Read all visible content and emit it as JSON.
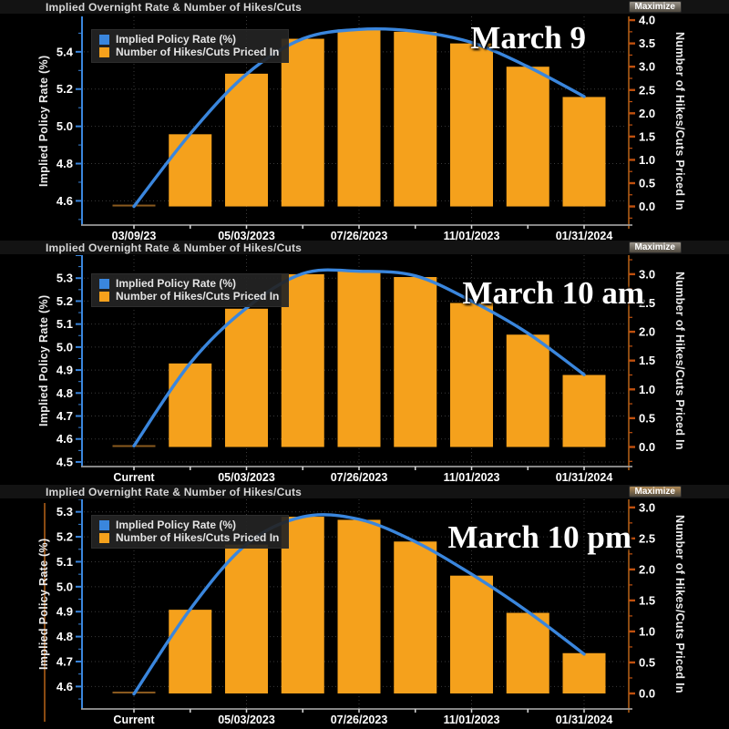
{
  "colors": {
    "background": "#000000",
    "bar": "#F5A11C",
    "bar_dim": "#8A5A1E",
    "line": "#3A86DD",
    "left_axis": "#3A86DD",
    "right_axis_spine": "#8A4A12",
    "right_axis_tick": "#C0500E",
    "grid": "#3A3A3A",
    "x_axis": "#9A9A9A",
    "tick_text": "#FFFFFF",
    "title_text": "#D6D6D6"
  },
  "chart_data": [
    {
      "type": "bar+line",
      "panel_title": "Implied Overnight Rate & Number of Hikes/Cuts",
      "maximize_label": "Maximize",
      "maximize_bg": "#9a948a",
      "annotation": "March 9",
      "legend": [
        {
          "label": "Implied Policy Rate (%)",
          "swatch": "#3A86DD"
        },
        {
          "label": "Number of Hikes/Cuts Priced In",
          "swatch": "#F5A11C"
        }
      ],
      "x_tick_labels": [
        "03/09/23",
        "05/03/2023",
        "07/26/2023",
        "11/01/2023",
        "01/31/2024"
      ],
      "left_axis": {
        "label": "Implied Policy Rate (%)",
        "ticks": [
          "5.4",
          "5.2",
          "5.0",
          "4.8",
          "4.6"
        ],
        "range": [
          4.47,
          5.59
        ],
        "major_step": 0.2,
        "minor_step": 0.1
      },
      "right_axis": {
        "label": "Number of Hikes/Cuts Priced In",
        "ticks": [
          "4.0",
          "3.5",
          "3.0",
          "2.5",
          "2.0",
          "1.5",
          "1.0",
          "0.5",
          "0.0"
        ],
        "range": [
          -0.4,
          4.08
        ],
        "major_step": 0.5,
        "minor_step": 0.25
      },
      "bars_hikes_priced_in": [
        0.03,
        1.55,
        2.85,
        3.6,
        3.8,
        3.75,
        3.5,
        3.0,
        2.35
      ],
      "line_implied_rate": [
        4.57,
        4.96,
        5.28,
        5.47,
        5.52,
        5.51,
        5.45,
        5.32,
        5.16
      ]
    },
    {
      "type": "bar+line",
      "panel_title": "Implied Overnight Rate & Number of Hikes/Cuts",
      "maximize_label": "Maximize",
      "maximize_bg": "#9a948a",
      "annotation": "March 10 am",
      "legend": [
        {
          "label": "Implied Policy Rate (%)",
          "swatch": "#3A86DD"
        },
        {
          "label": "Number of Hikes/Cuts Priced In",
          "swatch": "#F5A11C"
        }
      ],
      "x_tick_labels": [
        "Current",
        "05/03/2023",
        "07/26/2023",
        "11/01/2023",
        "01/31/2024"
      ],
      "left_axis": {
        "label": "Implied Policy Rate (%)",
        "ticks": [
          "5.3",
          "5.2",
          "5.1",
          "5.0",
          "4.9",
          "4.8",
          "4.7",
          "4.6",
          "4.5"
        ],
        "range": [
          4.48,
          5.4
        ],
        "major_step": 0.1,
        "minor_step": 0.05
      },
      "right_axis": {
        "label": "Number of Hikes/Cuts Priced In",
        "ticks": [
          "3.0",
          "2.5",
          "2.0",
          "1.5",
          "1.0",
          "0.5",
          "0.0"
        ],
        "range": [
          -0.34,
          3.33
        ],
        "major_step": 0.5,
        "minor_step": 0.25
      },
      "bars_hikes_priced_in": [
        0.03,
        1.45,
        2.4,
        3.0,
        3.05,
        2.95,
        2.5,
        1.95,
        1.25
      ],
      "line_implied_rate": [
        4.57,
        4.93,
        5.17,
        5.32,
        5.33,
        5.31,
        5.2,
        5.06,
        4.88
      ]
    },
    {
      "type": "bar+line",
      "panel_title": "Implied Overnight Rate & Number of Hikes/Cuts",
      "maximize_label": "Maximize",
      "maximize_bg": "#b08a56",
      "annotation": "March 10 pm",
      "legend": [
        {
          "label": "Implied Policy Rate (%)",
          "swatch": "#3A86DD"
        },
        {
          "label": "Number of Hikes/Cuts Priced In",
          "swatch": "#F5A11C"
        }
      ],
      "x_tick_labels": [
        "Current",
        "05/03/2023",
        "07/26/2023",
        "11/01/2023",
        "01/31/2024"
      ],
      "left_axis": {
        "label": "Implied Policy Rate (%)",
        "ticks": [
          "5.3",
          "5.2",
          "5.1",
          "5.0",
          "4.9",
          "4.8",
          "4.7",
          "4.6"
        ],
        "range": [
          4.51,
          5.35
        ],
        "major_step": 0.1,
        "minor_step": 0.05
      },
      "right_axis": {
        "label": "Number of Hikes/Cuts Priced In",
        "ticks": [
          "3.0",
          "2.5",
          "2.0",
          "1.5",
          "1.0",
          "0.5",
          "0.0"
        ],
        "range": [
          -0.25,
          3.13
        ],
        "major_step": 0.5,
        "minor_step": 0.25
      },
      "bars_hikes_priced_in": [
        0.03,
        1.35,
        2.4,
        2.85,
        2.8,
        2.45,
        1.9,
        1.3,
        0.65
      ],
      "line_implied_rate": [
        4.57,
        4.91,
        5.17,
        5.28,
        5.27,
        5.18,
        5.05,
        4.9,
        4.73
      ]
    }
  ]
}
